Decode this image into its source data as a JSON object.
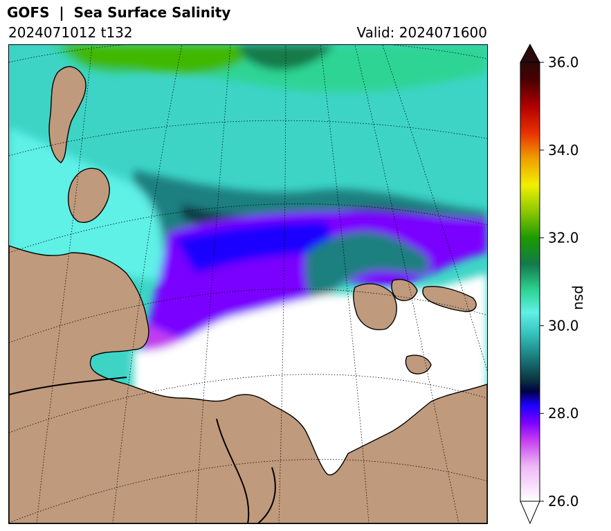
{
  "header": {
    "title": "GOFS  |  Sea Surface Salinity",
    "run": "2024071012 t132",
    "valid": "Valid: 2024071600"
  },
  "map": {
    "region": "Arctic - Laptev / Kara / East Siberian seas",
    "land_color": "#c09a7c",
    "coast_color": "#000000",
    "graticule_style": "dotted"
  },
  "colorbar": {
    "units": "psu",
    "min": 26.0,
    "max": 36.0,
    "extend": "both",
    "ticks": [
      "26.0",
      "28.0",
      "30.0",
      "32.0",
      "34.0",
      "36.0"
    ],
    "tick_values": [
      26,
      28,
      30,
      32,
      34,
      36
    ],
    "stops": [
      {
        "v": 26.0,
        "c": "#ffffff"
      },
      {
        "v": 26.8,
        "c": "#eeb8f6"
      },
      {
        "v": 27.4,
        "c": "#c23cf0"
      },
      {
        "v": 27.8,
        "c": "#7a00ff"
      },
      {
        "v": 28.2,
        "c": "#1a00ff"
      },
      {
        "v": 28.5,
        "c": "#000044"
      },
      {
        "v": 28.8,
        "c": "#0c3a42"
      },
      {
        "v": 29.3,
        "c": "#1a7f80"
      },
      {
        "v": 29.8,
        "c": "#34c0bc"
      },
      {
        "v": 30.3,
        "c": "#5ff0e6"
      },
      {
        "v": 30.8,
        "c": "#2fd494"
      },
      {
        "v": 31.4,
        "c": "#137a4a"
      },
      {
        "v": 32.0,
        "c": "#1c9a00"
      },
      {
        "v": 32.6,
        "c": "#8cc800"
      },
      {
        "v": 33.2,
        "c": "#f0f000"
      },
      {
        "v": 33.8,
        "c": "#f0a000"
      },
      {
        "v": 34.4,
        "c": "#e83000"
      },
      {
        "v": 35.0,
        "c": "#b00000"
      },
      {
        "v": 35.6,
        "c": "#4a0000"
      },
      {
        "v": 36.0,
        "c": "#2a0a0a"
      }
    ],
    "over_color": "#2a0a0a",
    "under_color": "#ffffff"
  }
}
